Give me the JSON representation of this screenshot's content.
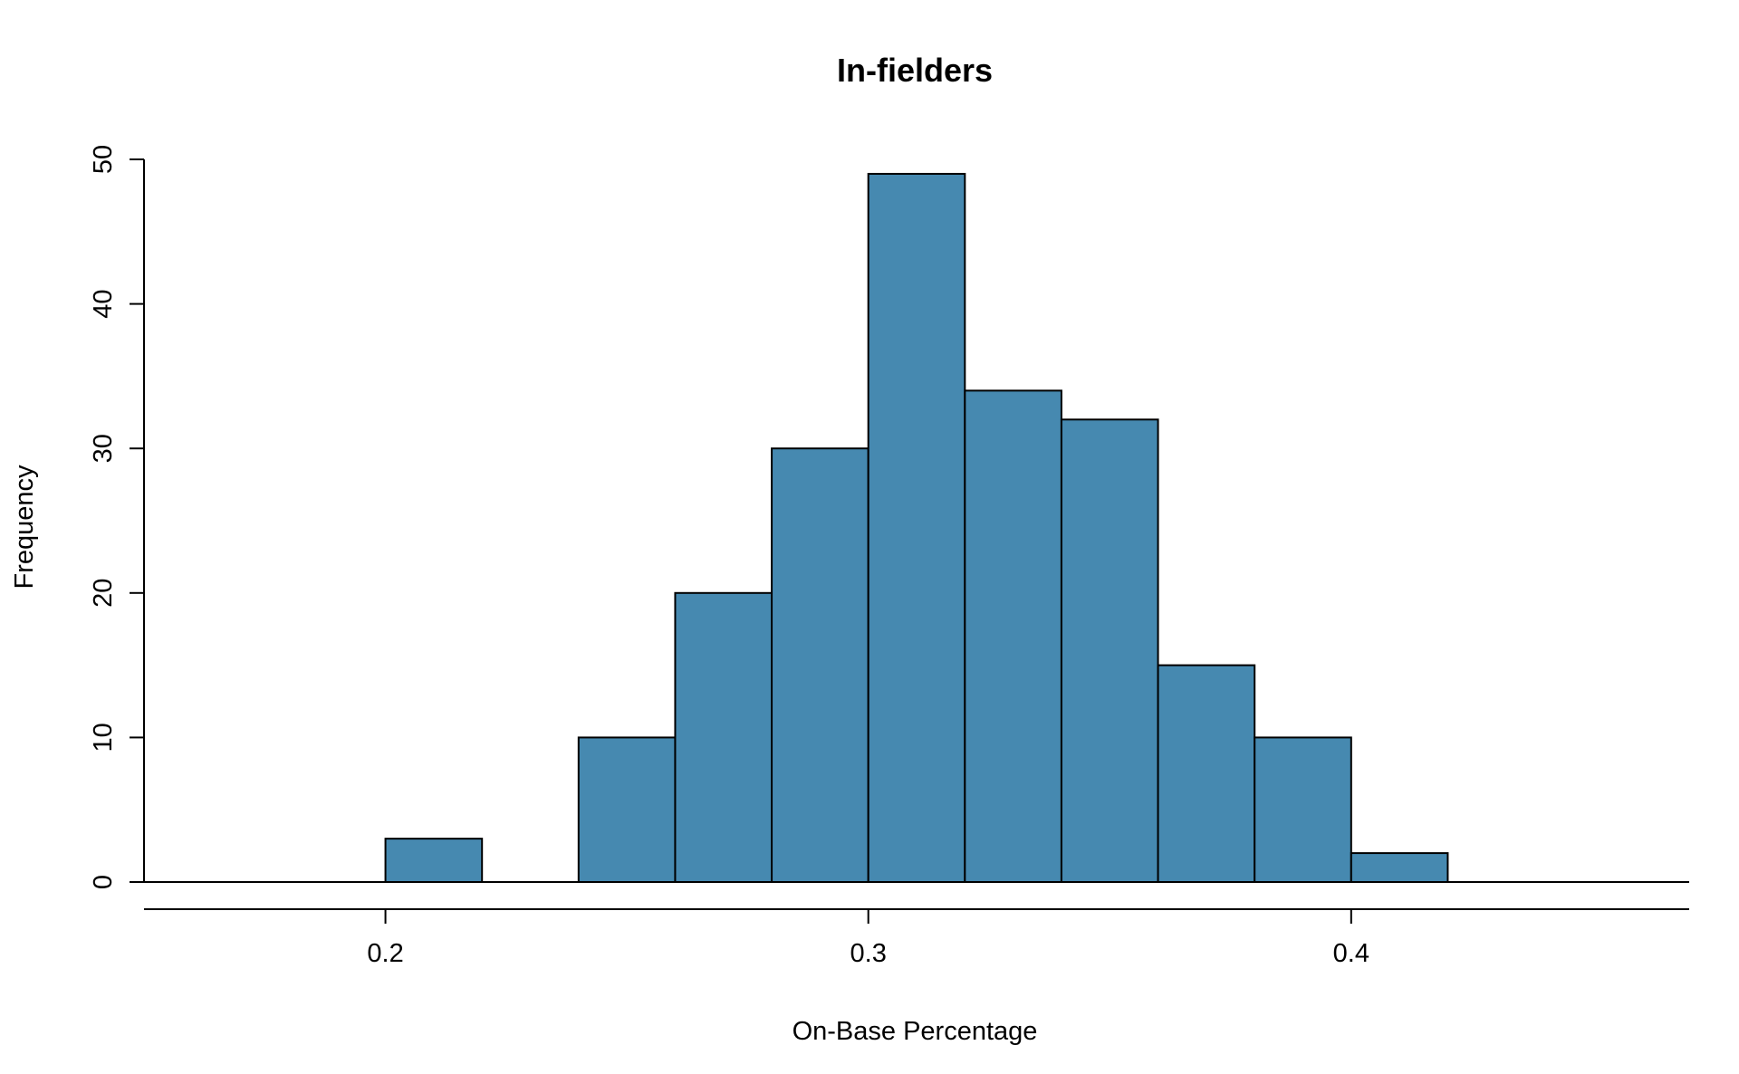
{
  "chart_data": {
    "type": "bar",
    "title": "In-fielders",
    "xlabel": "On-Base Percentage",
    "ylabel": "Frequency",
    "bin_edges": [
      0.16,
      0.18,
      0.2,
      0.22,
      0.24,
      0.26,
      0.28,
      0.3,
      0.32,
      0.34,
      0.36,
      0.38,
      0.4,
      0.42,
      0.44,
      0.46
    ],
    "values": [
      0,
      0,
      3,
      0,
      10,
      20,
      30,
      49,
      34,
      32,
      15,
      10,
      2,
      0,
      0
    ],
    "xlim": [
      0.15,
      0.47
    ],
    "ylim": [
      0,
      50
    ],
    "x_ticks": [
      "0.2",
      "0.3",
      "0.4"
    ],
    "y_ticks": [
      "0",
      "10",
      "20",
      "30",
      "40",
      "50"
    ],
    "bar_color": "#4689b0",
    "grid": false,
    "legend": "none"
  }
}
